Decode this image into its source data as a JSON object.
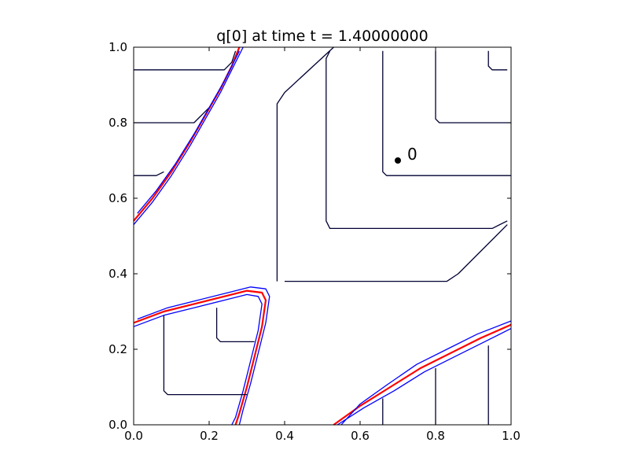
{
  "chart_data": {
    "type": "line",
    "title": "q[0] at time t =     1.40000000",
    "xlabel": "",
    "ylabel": "",
    "xlim": [
      0.0,
      1.0
    ],
    "ylim": [
      0.0,
      1.0
    ],
    "x_ticks": [
      "0.0",
      "0.2",
      "0.4",
      "0.6",
      "0.8",
      "1.0"
    ],
    "y_ticks": [
      "0.0",
      "0.2",
      "0.4",
      "0.6",
      "0.8",
      "1.0"
    ],
    "grid": false,
    "legend": "none",
    "colors": {
      "contour_dark": "#000033",
      "contour_blue": "#0000ff",
      "contour_red": "#ff0000",
      "axes": "#000000"
    },
    "annotation": {
      "text": "0",
      "x": 0.7,
      "y": 0.7
    },
    "series": [
      {
        "color": "#000033",
        "points": [
          [
            0.0,
            0.94
          ],
          [
            0.24,
            0.94
          ],
          [
            0.26,
            0.96
          ],
          [
            0.27,
            0.99
          ]
        ]
      },
      {
        "color": "#000033",
        "points": [
          [
            0.0,
            0.8
          ],
          [
            0.16,
            0.8
          ],
          [
            0.18,
            0.82
          ],
          [
            0.2,
            0.84
          ]
        ]
      },
      {
        "color": "#000033",
        "points": [
          [
            0.0,
            0.66
          ],
          [
            0.06,
            0.66
          ],
          [
            0.08,
            0.67
          ]
        ]
      },
      {
        "color": "#ff0000",
        "points": [
          [
            0.0,
            0.54
          ],
          [
            0.05,
            0.6
          ],
          [
            0.1,
            0.67
          ],
          [
            0.15,
            0.75
          ],
          [
            0.19,
            0.82
          ],
          [
            0.23,
            0.89
          ],
          [
            0.26,
            0.95
          ],
          [
            0.28,
            1.0
          ]
        ]
      },
      {
        "color": "#0000ff",
        "points": [
          [
            0.0,
            0.53
          ],
          [
            0.05,
            0.59
          ],
          [
            0.1,
            0.66
          ],
          [
            0.15,
            0.74
          ],
          [
            0.19,
            0.81
          ],
          [
            0.23,
            0.88
          ],
          [
            0.26,
            0.94
          ],
          [
            0.29,
            1.0
          ]
        ]
      },
      {
        "color": "#0000ff",
        "points": [
          [
            0.01,
            0.56
          ],
          [
            0.06,
            0.62
          ],
          [
            0.11,
            0.69
          ],
          [
            0.16,
            0.77
          ],
          [
            0.2,
            0.84
          ],
          [
            0.24,
            0.91
          ],
          [
            0.27,
            0.97
          ],
          [
            0.28,
            0.99
          ]
        ]
      },
      {
        "color": "#000033",
        "points": [
          [
            0.38,
            0.38
          ],
          [
            0.38,
            0.85
          ],
          [
            0.4,
            0.88
          ],
          [
            0.53,
            1.0
          ]
        ]
      },
      {
        "color": "#000033",
        "points": [
          [
            0.4,
            0.38
          ],
          [
            0.83,
            0.38
          ],
          [
            0.86,
            0.4
          ],
          [
            0.99,
            0.53
          ]
        ]
      },
      {
        "color": "#000033",
        "points": [
          [
            0.52,
            0.99
          ],
          [
            0.51,
            0.97
          ],
          [
            0.51,
            0.54
          ],
          [
            0.52,
            0.52
          ],
          [
            0.95,
            0.52
          ],
          [
            0.99,
            0.54
          ]
        ]
      },
      {
        "color": "#000033",
        "points": [
          [
            0.66,
            0.99
          ],
          [
            0.66,
            0.67
          ],
          [
            0.67,
            0.66
          ],
          [
            1.0,
            0.66
          ]
        ]
      },
      {
        "color": "#000033",
        "points": [
          [
            0.8,
            0.99
          ],
          [
            0.8,
            0.81
          ],
          [
            0.81,
            0.8
          ],
          [
            1.0,
            0.8
          ]
        ]
      },
      {
        "color": "#000033",
        "points": [
          [
            0.94,
            0.99
          ],
          [
            0.94,
            0.95
          ],
          [
            0.95,
            0.94
          ],
          [
            0.99,
            0.94
          ]
        ]
      },
      {
        "color": "#ff0000",
        "points": [
          [
            0.0,
            0.27
          ],
          [
            0.08,
            0.3
          ],
          [
            0.16,
            0.32
          ],
          [
            0.24,
            0.34
          ],
          [
            0.3,
            0.355
          ],
          [
            0.34,
            0.35
          ],
          [
            0.35,
            0.33
          ],
          [
            0.34,
            0.26
          ],
          [
            0.32,
            0.18
          ],
          [
            0.3,
            0.1
          ],
          [
            0.28,
            0.03
          ],
          [
            0.27,
            0.0
          ]
        ]
      },
      {
        "color": "#0000ff",
        "points": [
          [
            0.0,
            0.26
          ],
          [
            0.08,
            0.29
          ],
          [
            0.16,
            0.31
          ],
          [
            0.24,
            0.33
          ],
          [
            0.3,
            0.345
          ],
          [
            0.33,
            0.34
          ],
          [
            0.34,
            0.32
          ],
          [
            0.33,
            0.25
          ],
          [
            0.31,
            0.17
          ],
          [
            0.29,
            0.09
          ],
          [
            0.27,
            0.02
          ],
          [
            0.26,
            0.0
          ]
        ]
      },
      {
        "color": "#0000ff",
        "points": [
          [
            0.01,
            0.28
          ],
          [
            0.09,
            0.31
          ],
          [
            0.17,
            0.33
          ],
          [
            0.25,
            0.35
          ],
          [
            0.31,
            0.365
          ],
          [
            0.35,
            0.36
          ],
          [
            0.36,
            0.34
          ],
          [
            0.35,
            0.27
          ],
          [
            0.33,
            0.19
          ],
          [
            0.31,
            0.11
          ],
          [
            0.29,
            0.04
          ],
          [
            0.28,
            0.0
          ]
        ]
      },
      {
        "color": "#000033",
        "points": [
          [
            0.08,
            0.29
          ],
          [
            0.08,
            0.09
          ],
          [
            0.09,
            0.08
          ],
          [
            0.3,
            0.08
          ]
        ]
      },
      {
        "color": "#000033",
        "points": [
          [
            0.22,
            0.31
          ],
          [
            0.22,
            0.23
          ],
          [
            0.23,
            0.22
          ],
          [
            0.32,
            0.22
          ]
        ]
      },
      {
        "color": "#ff0000",
        "points": [
          [
            0.53,
            0.0
          ],
          [
            0.6,
            0.05
          ],
          [
            0.68,
            0.1
          ],
          [
            0.76,
            0.15
          ],
          [
            0.84,
            0.19
          ],
          [
            0.92,
            0.23
          ],
          [
            1.0,
            0.265
          ]
        ]
      },
      {
        "color": "#0000ff",
        "points": [
          [
            0.54,
            0.0
          ],
          [
            0.61,
            0.045
          ],
          [
            0.69,
            0.09
          ],
          [
            0.77,
            0.14
          ],
          [
            0.85,
            0.18
          ],
          [
            0.93,
            0.22
          ],
          [
            1.0,
            0.255
          ]
        ]
      },
      {
        "color": "#0000ff",
        "points": [
          [
            0.55,
            0.0
          ],
          [
            0.6,
            0.055
          ],
          [
            0.67,
            0.105
          ],
          [
            0.75,
            0.16
          ],
          [
            0.83,
            0.2
          ],
          [
            0.91,
            0.24
          ],
          [
            1.0,
            0.275
          ]
        ]
      },
      {
        "color": "#000033",
        "points": [
          [
            0.66,
            0.0
          ],
          [
            0.66,
            0.07
          ]
        ]
      },
      {
        "color": "#000033",
        "points": [
          [
            0.8,
            0.0
          ],
          [
            0.8,
            0.15
          ]
        ]
      },
      {
        "color": "#000033",
        "points": [
          [
            0.94,
            0.0
          ],
          [
            0.94,
            0.21
          ]
        ]
      }
    ]
  }
}
